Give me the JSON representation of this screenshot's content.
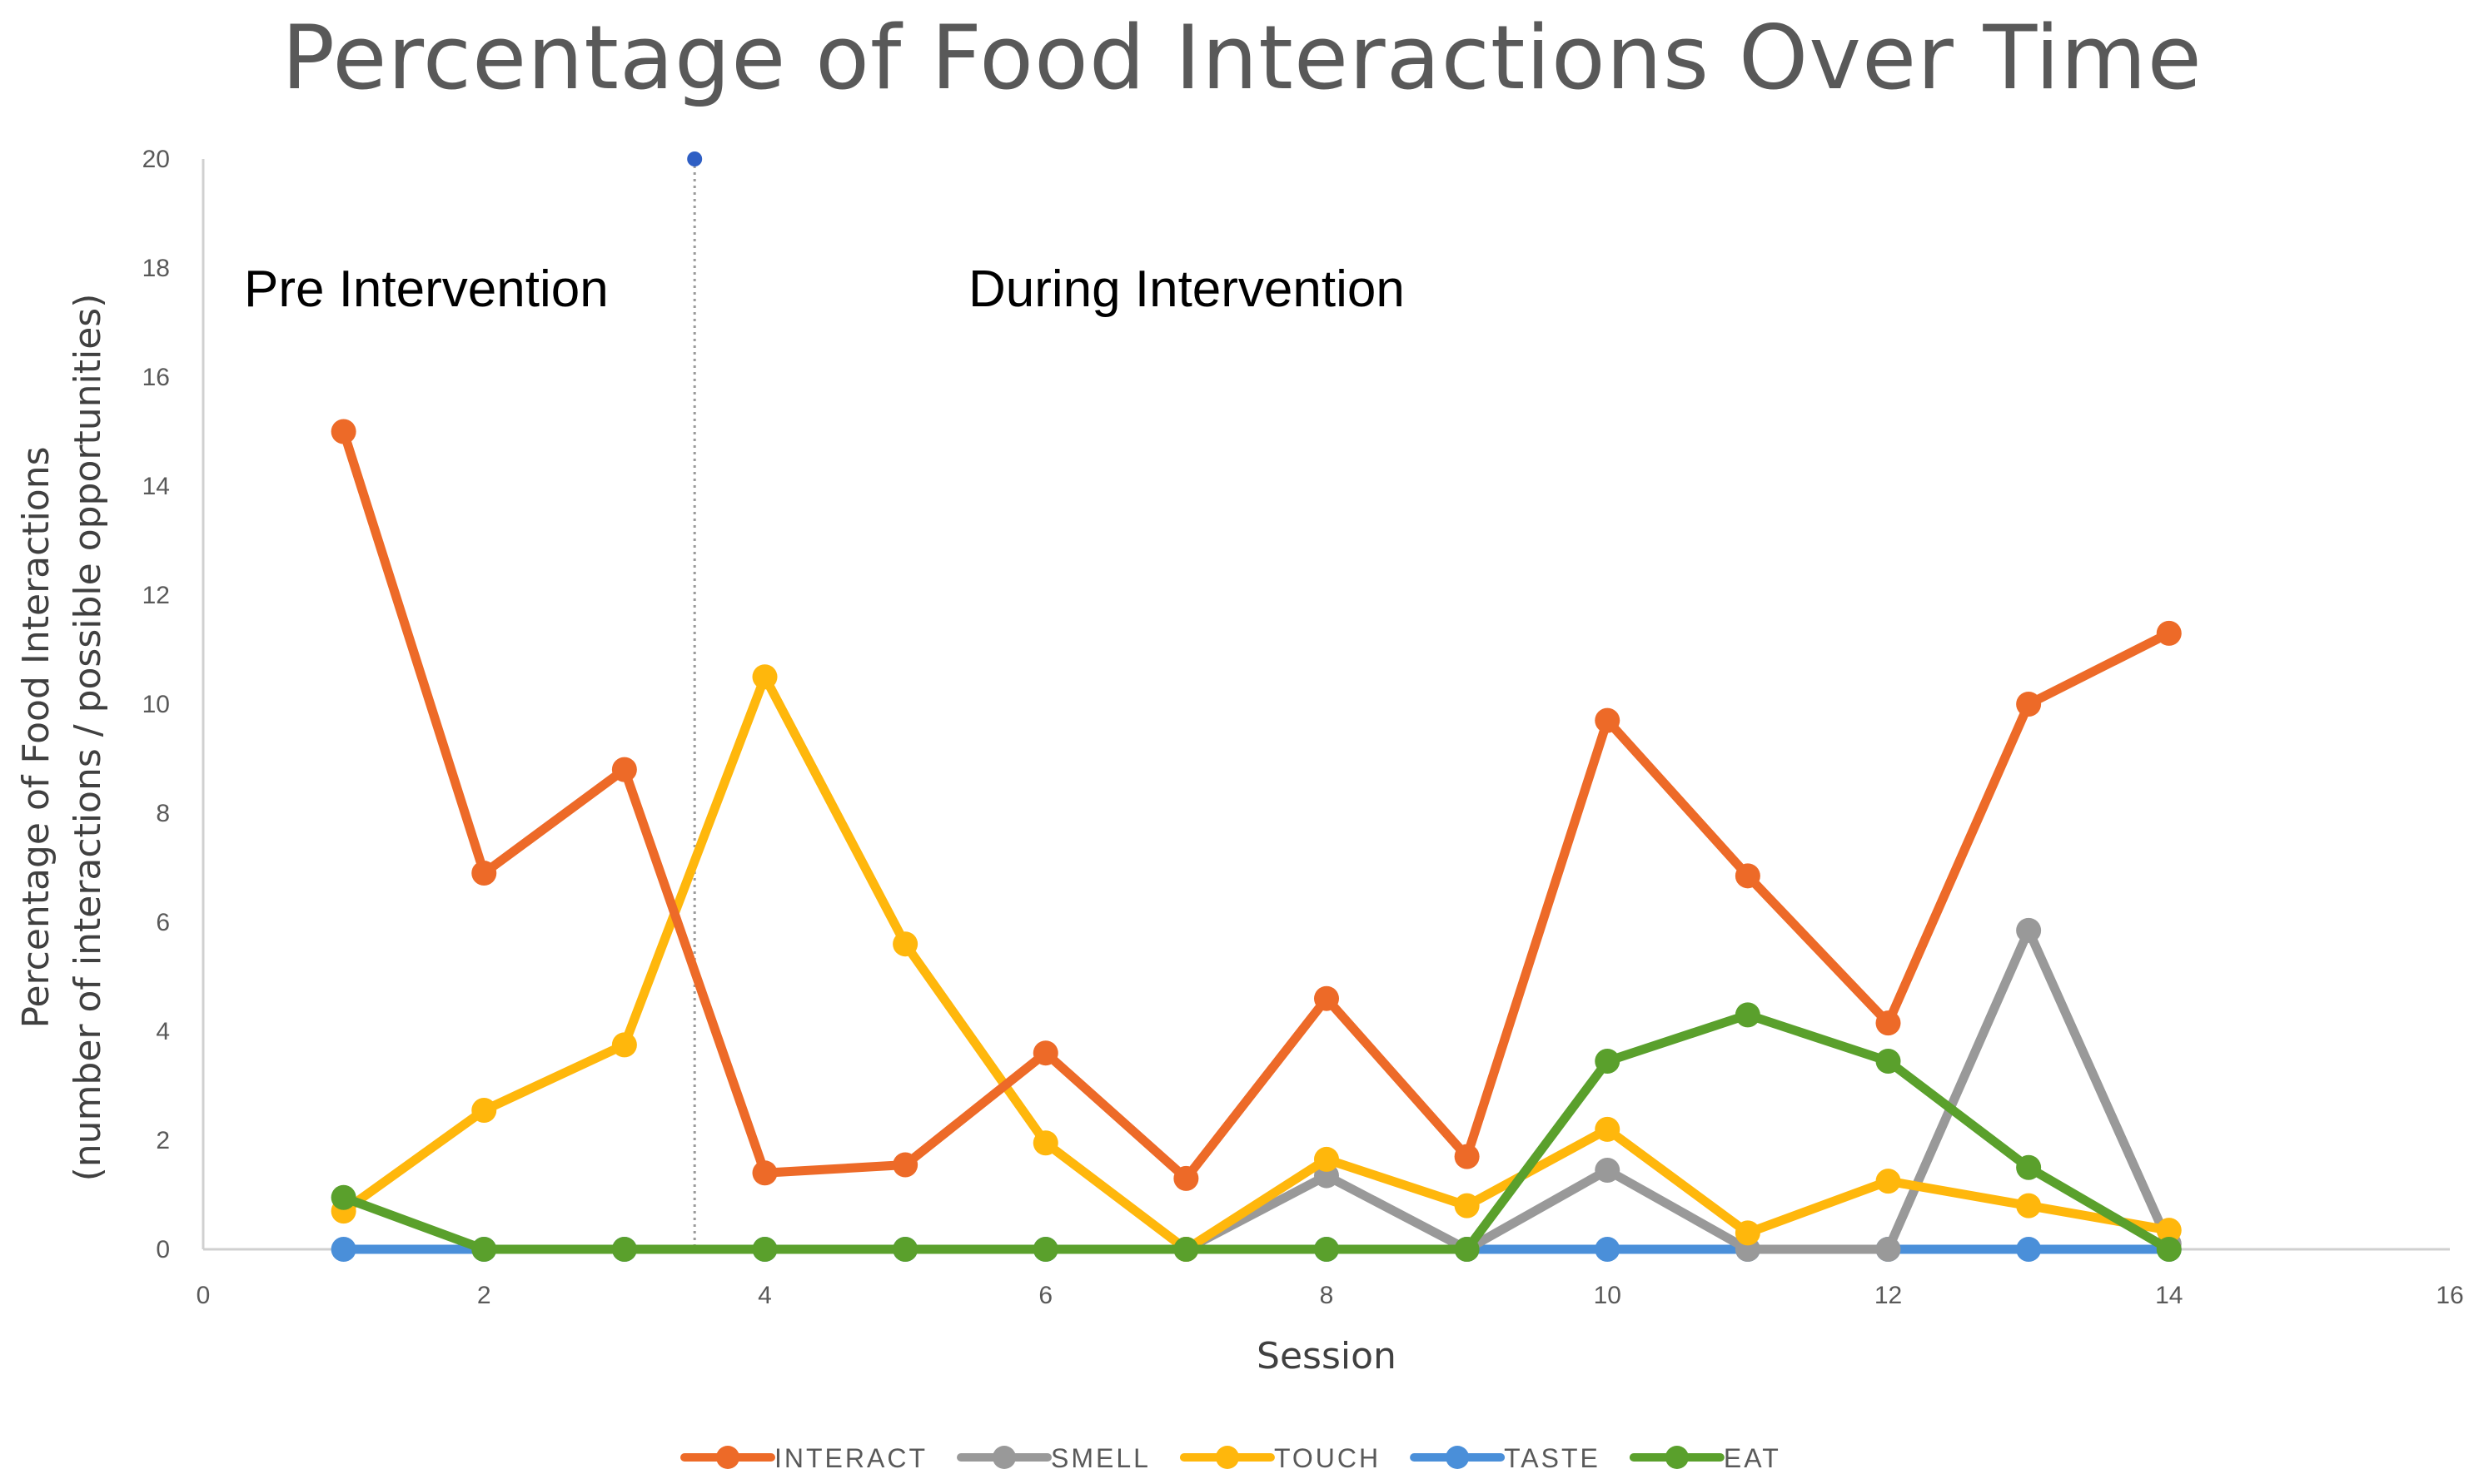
{
  "chart_data": {
    "type": "line",
    "title": "Percentage of Food Interactions Over Time",
    "xlabel": "Session",
    "ylabel_lines": [
      "Percentage of Food Interactions",
      "(number of interactions / possible opportunities)"
    ],
    "xlim": [
      0,
      16
    ],
    "ylim": [
      0,
      20
    ],
    "x_ticks": [
      0,
      2,
      4,
      6,
      8,
      10,
      12,
      14,
      16
    ],
    "y_ticks": [
      0,
      2,
      4,
      6,
      8,
      10,
      12,
      14,
      16,
      18,
      20
    ],
    "grid": false,
    "legend_position": "bottom",
    "phase_line_x": 3.5,
    "annotations": {
      "pre": "Pre Intervention",
      "during": "During Intervention"
    },
    "x": [
      1,
      2,
      3,
      4,
      5,
      6,
      7,
      8,
      9,
      10,
      11,
      12,
      13,
      14
    ],
    "series": [
      {
        "name": "INTERACT",
        "color": "#ED6A28",
        "values": [
          15,
          6.9,
          8.8,
          1.4,
          1.55,
          3.6,
          1.3,
          4.6,
          1.7,
          9.7,
          6.85,
          4.15,
          10,
          11.3
        ]
      },
      {
        "name": "SMELL",
        "color": "#999999",
        "values": [
          null,
          null,
          null,
          null,
          null,
          null,
          0,
          1.35,
          0,
          1.45,
          0,
          0,
          5.85,
          0.1
        ]
      },
      {
        "name": "TOUCH",
        "color": "#FFB70C",
        "values": [
          0.7,
          2.55,
          3.75,
          10.5,
          5.6,
          1.95,
          0,
          1.65,
          0.8,
          2.2,
          0.3,
          1.25,
          0.8,
          0.35
        ]
      },
      {
        "name": "TASTE",
        "color": "#4A8FD9",
        "values": [
          0,
          0,
          0,
          0,
          0,
          0,
          0,
          0,
          0,
          0,
          0,
          0,
          0,
          0
        ]
      },
      {
        "name": "EAT",
        "color": "#5AA02C",
        "values": [
          0.95,
          0,
          0,
          0,
          0,
          0,
          0,
          0,
          0,
          3.45,
          4.3,
          3.45,
          1.5,
          0
        ]
      }
    ]
  }
}
